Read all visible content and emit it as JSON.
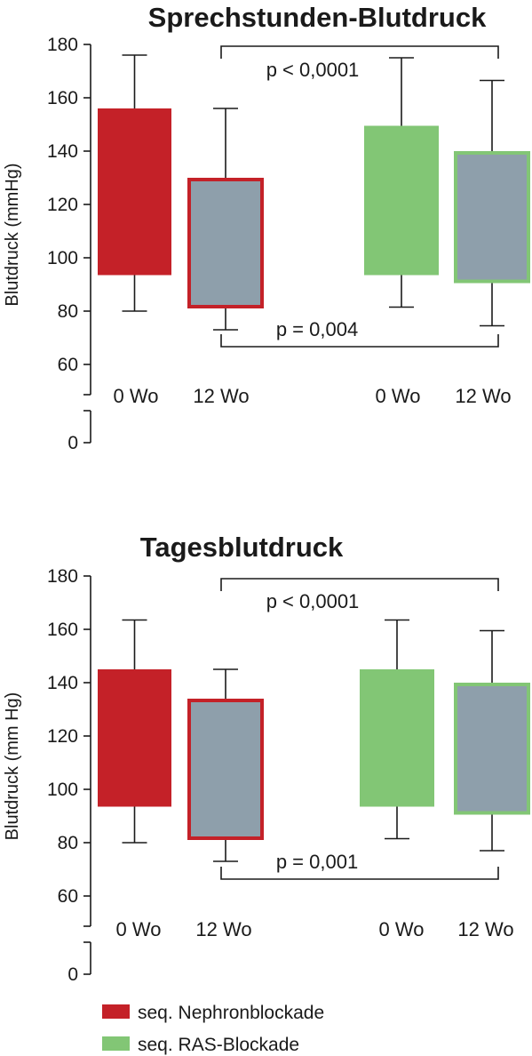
{
  "chart_data": [
    {
      "type": "boxplot",
      "title": "Sprechstunden-Blutdruck",
      "ylabel": "Blutdruck (mmHg)",
      "yticks": [
        0,
        60,
        80,
        100,
        120,
        140,
        160,
        180
      ],
      "ylim": [
        0,
        180
      ],
      "axis_break": true,
      "boxes": [
        {
          "category": "0 Wo",
          "group": "seq. Nephronblockade",
          "whisker_low": 80,
          "q1": 93.5,
          "q3": 156,
          "whisker_high": 176,
          "style": "red-filled"
        },
        {
          "category": "12 Wo",
          "group": "seq. Nephronblockade",
          "whisker_low": 73,
          "q1": 81,
          "q3": 130,
          "whisker_high": 156,
          "style": "gray-red-border"
        },
        {
          "category": "0 Wo",
          "group": "seq. RAS-Blockade",
          "whisker_low": 81.5,
          "q1": 93.5,
          "q3": 149.5,
          "whisker_high": 175,
          "style": "green-filled"
        },
        {
          "category": "12 Wo",
          "group": "seq. RAS-Blockade",
          "whisker_low": 74.5,
          "q1": 90.5,
          "q3": 140,
          "whisker_high": 166.5,
          "style": "gray-green-border"
        }
      ],
      "annotations": [
        {
          "text": "p < 0,0001",
          "from_box": 0,
          "to_box": 2,
          "position": "top"
        },
        {
          "text": "p = 0,004",
          "from_box": 1,
          "to_box": 3,
          "position": "bottom"
        }
      ]
    },
    {
      "type": "boxplot",
      "title": "Tagesblutdruck",
      "ylabel": "Blutdruck (mm Hg)",
      "yticks": [
        0,
        60,
        80,
        100,
        120,
        140,
        160,
        180
      ],
      "ylim": [
        0,
        180
      ],
      "axis_break": true,
      "boxes": [
        {
          "category": "0 Wo",
          "group": "seq. Nephronblockade",
          "whisker_low": 80,
          "q1": 93.5,
          "q3": 145,
          "whisker_high": 163.5,
          "style": "red-filled"
        },
        {
          "category": "12 Wo",
          "group": "seq. Nephronblockade",
          "whisker_low": 73,
          "q1": 81,
          "q3": 134,
          "whisker_high": 145,
          "style": "gray-red-border"
        },
        {
          "category": "0 Wo",
          "group": "seq. RAS-Blockade",
          "whisker_low": 81.5,
          "q1": 93.5,
          "q3": 145,
          "whisker_high": 163.5,
          "style": "green-filled"
        },
        {
          "category": "12 Wo",
          "group": "seq. RAS-Blockade",
          "whisker_low": 77,
          "q1": 90.5,
          "q3": 140,
          "whisker_high": 159.5,
          "style": "gray-green-border"
        }
      ],
      "annotations": [
        {
          "text": "p < 0,0001",
          "from_box": 0,
          "to_box": 2,
          "position": "top"
        },
        {
          "text": "p = 0,001",
          "from_box": 1,
          "to_box": 3,
          "position": "bottom"
        }
      ]
    }
  ],
  "legend": [
    {
      "label": "seq. Nephronblockade",
      "color": "#c42128"
    },
    {
      "label": "seq. RAS-Blockade",
      "color": "#82c675"
    }
  ],
  "colors": {
    "red": "#c42128",
    "green": "#82c675",
    "gray": "#8e9fab",
    "axis": "#1a1a1a"
  }
}
